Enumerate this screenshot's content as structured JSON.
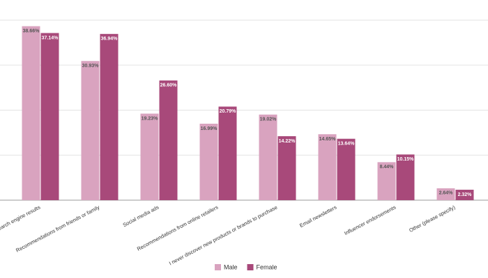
{
  "chart_data": {
    "type": "bar",
    "categories": [
      "Search engine results",
      "Recommendations from friends or family",
      "Social media ads",
      "Recommendations from online retailers",
      "I never discover new products or brands to purchase",
      "Email newsletters",
      "Influencer endorsements",
      "Other (please specify)"
    ],
    "series": [
      {
        "name": "Male",
        "color": "#d9a3bf",
        "values": [
          38.66,
          30.93,
          19.23,
          16.99,
          19.02,
          14.65,
          8.44,
          2.64
        ],
        "value_labels": [
          "38.66%",
          "30.93%",
          "19.23%",
          "16.99%",
          "19.02%",
          "14.65%",
          "8.44%",
          "2.64%"
        ]
      },
      {
        "name": "Female",
        "color": "#a8497a",
        "values": [
          37.14,
          36.94,
          26.6,
          20.79,
          14.22,
          13.64,
          10.15,
          2.32
        ],
        "value_labels": [
          "37.14%",
          "36.94%",
          "26.60%",
          "20.79%",
          "14.22%",
          "13.64%",
          "10.15%",
          "2.32%"
        ]
      }
    ],
    "ylim": [
      0,
      40
    ],
    "yticks": [
      0,
      10,
      20,
      30,
      40
    ],
    "grid": true
  }
}
